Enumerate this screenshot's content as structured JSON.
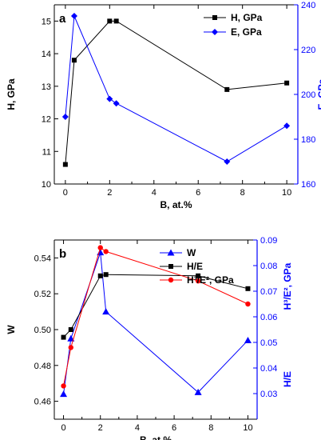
{
  "chart_data": [
    {
      "panel_label": "a",
      "type": "line",
      "xlabel": "B, at.%",
      "xlim": [
        -0.5,
        10.5
      ],
      "xticks": [
        0,
        2,
        4,
        6,
        8,
        10
      ],
      "ylabel_left": "H, GPa",
      "ylim_left": [
        10,
        15.5
      ],
      "yticks_left": [
        10,
        11,
        12,
        13,
        14,
        15
      ],
      "ylabel_right": "E, GPa",
      "ylim_right": [
        160,
        240
      ],
      "yticks_right": [
        160,
        180,
        200,
        220,
        240
      ],
      "legend_position": "top-right",
      "series": [
        {
          "name": "H, GPa",
          "axis": "left",
          "color": "#000000",
          "marker": "square",
          "x": [
            0,
            0.4,
            2.0,
            2.3,
            7.3,
            10.0
          ],
          "y": [
            10.6,
            13.8,
            15.0,
            15.0,
            12.9,
            13.1
          ]
        },
        {
          "name": "E, GPa",
          "axis": "right",
          "color": "#0000ff",
          "marker": "diamond",
          "x": [
            0,
            0.4,
            2.0,
            2.3,
            7.3,
            10.0
          ],
          "y": [
            190,
            235,
            198,
            196,
            170,
            186
          ]
        }
      ]
    },
    {
      "panel_label": "b",
      "type": "line",
      "xlabel": "B, at.%",
      "xlim": [
        -0.5,
        10.5
      ],
      "xticks": [
        0,
        2,
        4,
        6,
        8,
        10
      ],
      "ylabel_left": "W",
      "ylim_left": [
        0.45,
        0.55
      ],
      "yticks_left": [
        0.46,
        0.48,
        0.5,
        0.52,
        0.54
      ],
      "ylabel_right_top": "H³/E², GPa",
      "ylabel_right_bottom": "H/E",
      "ylim_right": [
        0.02,
        0.09
      ],
      "yticks_right": [
        0.03,
        0.04,
        0.05,
        0.06,
        0.07,
        0.08,
        0.09
      ],
      "legend_position": "top-right",
      "series": [
        {
          "name": "W",
          "axis": "left",
          "color": "#0000ff",
          "marker": "triangle",
          "x": [
            0,
            0.4,
            2.0,
            2.3,
            7.3,
            10.0
          ],
          "y": [
            0.464,
            0.495,
            0.543,
            0.51,
            0.465,
            0.494
          ]
        },
        {
          "name": "H/E",
          "axis": "right",
          "color": "#000000",
          "marker": "square",
          "x": [
            0,
            0.4,
            2.0,
            2.3,
            7.3,
            10.0
          ],
          "y": [
            0.052,
            0.055,
            0.076,
            0.0765,
            0.076,
            0.071
          ]
        },
        {
          "name": "H³/E², GPa",
          "axis": "right",
          "color": "#ff0000",
          "marker": "circle",
          "x": [
            0,
            0.4,
            2.0,
            2.3,
            7.3,
            10.0
          ],
          "y": [
            0.033,
            0.048,
            0.087,
            0.0855,
            0.074,
            0.065
          ]
        }
      ]
    }
  ]
}
